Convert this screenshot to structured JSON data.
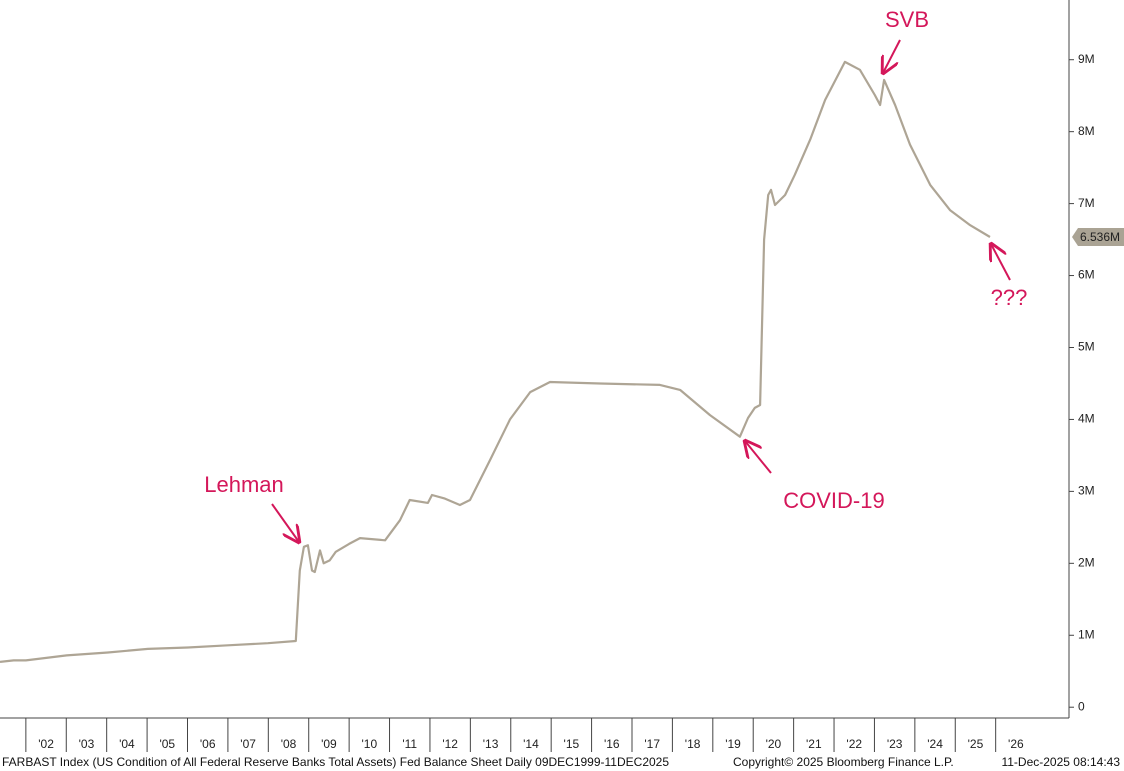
{
  "chart_data": {
    "type": "line",
    "color": "#aea595",
    "x": [
      2001.36,
      2001.7,
      2002.0,
      2003.01,
      2004.03,
      2005.02,
      2006.01,
      2007.0,
      2007.99,
      2008.68,
      2008.78,
      2008.88,
      2008.98,
      2009.08,
      2009.15,
      2009.28,
      2009.37,
      2009.52,
      2009.67,
      2010.0,
      2010.27,
      2010.89,
      2011.26,
      2011.5,
      2011.95,
      2012.05,
      2012.37,
      2012.74,
      2012.99,
      2013.49,
      2013.98,
      2014.48,
      2014.97,
      2016.21,
      2017.69,
      2018.19,
      2018.93,
      2019.67,
      2019.87,
      2020.04,
      2020.17,
      2020.27,
      2020.37,
      2020.44,
      2020.54,
      2020.79,
      2021.03,
      2021.41,
      2021.78,
      2022.27,
      2022.64,
      2023.01,
      2023.14,
      2023.24,
      2023.51,
      2023.88,
      2024.38,
      2024.87,
      2025.37,
      2025.86
    ],
    "values": [
      0.63,
      0.65,
      0.65,
      0.72,
      0.76,
      0.81,
      0.83,
      0.86,
      0.89,
      0.92,
      1.9,
      2.23,
      2.25,
      1.9,
      1.88,
      2.18,
      2.0,
      2.04,
      2.16,
      2.27,
      2.35,
      2.32,
      2.6,
      2.88,
      2.84,
      2.95,
      2.9,
      2.81,
      2.88,
      3.44,
      4.0,
      4.38,
      4.52,
      4.5,
      4.48,
      4.41,
      4.06,
      3.76,
      4.02,
      4.16,
      4.2,
      6.5,
      7.12,
      7.19,
      6.98,
      7.12,
      7.4,
      7.89,
      8.44,
      8.97,
      8.86,
      8.51,
      8.37,
      8.72,
      8.37,
      7.82,
      7.26,
      6.91,
      6.7,
      6.536
    ],
    "last_value": {
      "value": 6.536,
      "label": "6.536M"
    },
    "xlim": [
      2001.36,
      2027.79
    ],
    "xticks": [
      {
        "value": 2002,
        "label": "'02"
      },
      {
        "value": 2003,
        "label": "'03"
      },
      {
        "value": 2004,
        "label": "'04"
      },
      {
        "value": 2005,
        "label": "'05"
      },
      {
        "value": 2006,
        "label": "'06"
      },
      {
        "value": 2007,
        "label": "'07"
      },
      {
        "value": 2008,
        "label": "'08"
      },
      {
        "value": 2009,
        "label": "'09"
      },
      {
        "value": 2010,
        "label": "'10"
      },
      {
        "value": 2011,
        "label": "'11"
      },
      {
        "value": 2012,
        "label": "'12"
      },
      {
        "value": 2013,
        "label": "'13"
      },
      {
        "value": 2014,
        "label": "'14"
      },
      {
        "value": 2015,
        "label": "'15"
      },
      {
        "value": 2016,
        "label": "'16"
      },
      {
        "value": 2017,
        "label": "'17"
      },
      {
        "value": 2018,
        "label": "'18"
      },
      {
        "value": 2019,
        "label": "'19"
      },
      {
        "value": 2020,
        "label": "'20"
      },
      {
        "value": 2021,
        "label": "'21"
      },
      {
        "value": 2022,
        "label": "'22"
      },
      {
        "value": 2023,
        "label": "'23"
      },
      {
        "value": 2024,
        "label": "'24"
      },
      {
        "value": 2025,
        "label": "'25"
      },
      {
        "value": 2026,
        "label": "'26"
      }
    ],
    "ylim": [
      -0.15,
      9.83
    ],
    "yticks": [
      0,
      {
        "value": 1,
        "label": "1M"
      },
      {
        "value": 2,
        "label": "2M"
      },
      {
        "value": 3,
        "label": "3M"
      },
      {
        "value": 4,
        "label": "4M"
      },
      {
        "value": 5,
        "label": "5M"
      },
      {
        "value": 6,
        "label": "6M"
      },
      {
        "value": 7,
        "label": "7M"
      },
      {
        "value": 8,
        "label": "8M"
      },
      {
        "value": 9,
        "label": "9M"
      }
    ],
    "annotations": [
      {
        "text": "Lehman"
      },
      {
        "text": "COVID-19"
      },
      {
        "text": "SVB"
      },
      {
        "text": "???"
      }
    ],
    "footer": {
      "source": "FARBAST Index (US Condition of All Federal Reserve Banks Total Assets) Fed Balance Sheet Daily 09DEC1999-11DEC2025",
      "copyright": "Copyright© 2025 Bloomberg Finance L.P.",
      "timestamp": "11-Dec-2025 08:14:43"
    }
  }
}
